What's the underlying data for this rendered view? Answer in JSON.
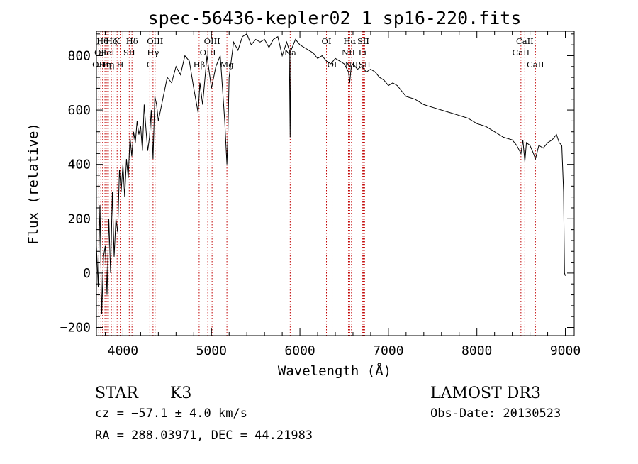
{
  "chart_data": {
    "type": "line",
    "title": "spec-56436-kepler02_1_sp16-220.fits",
    "xlabel": "Wavelength (Å)",
    "ylabel": "Flux (relative)",
    "xlim": [
      3700,
      9100
    ],
    "ylim": [
      -230,
      890
    ],
    "xticks": [
      4000,
      5000,
      6000,
      7000,
      8000,
      9000
    ],
    "yticks": [
      -200,
      0,
      200,
      400,
      600,
      800
    ],
    "grid": false,
    "series": [
      {
        "name": "spectrum",
        "x": [
          3700,
          3720,
          3740,
          3760,
          3780,
          3800,
          3820,
          3840,
          3860,
          3880,
          3900,
          3920,
          3940,
          3960,
          3980,
          4000,
          4020,
          4040,
          4060,
          4080,
          4100,
          4120,
          4140,
          4160,
          4180,
          4200,
          4220,
          4240,
          4260,
          4280,
          4300,
          4320,
          4340,
          4360,
          4380,
          4400,
          4450,
          4500,
          4550,
          4600,
          4650,
          4700,
          4750,
          4800,
          4850,
          4870,
          4900,
          4950,
          5000,
          5050,
          5100,
          5150,
          5175,
          5185,
          5200,
          5250,
          5300,
          5350,
          5400,
          5450,
          5500,
          5550,
          5600,
          5650,
          5700,
          5750,
          5800,
          5850,
          5880,
          5890,
          5896,
          5900,
          5950,
          6000,
          6050,
          6100,
          6150,
          6200,
          6250,
          6300,
          6350,
          6400,
          6450,
          6500,
          6550,
          6563,
          6580,
          6600,
          6650,
          6700,
          6750,
          6800,
          6850,
          6900,
          6950,
          7000,
          7050,
          7100,
          7150,
          7200,
          7300,
          7400,
          7500,
          7600,
          7700,
          7800,
          7900,
          8000,
          8100,
          8200,
          8300,
          8400,
          8450,
          8498,
          8520,
          8542,
          8560,
          8600,
          8640,
          8662,
          8700,
          8750,
          8800,
          8850,
          8900,
          8930,
          8960,
          8980,
          8990,
          9000
        ],
        "y": [
          100,
          -50,
          250,
          -150,
          60,
          100,
          -80,
          200,
          0,
          300,
          60,
          200,
          150,
          380,
          300,
          400,
          280,
          420,
          350,
          500,
          430,
          520,
          480,
          560,
          510,
          540,
          450,
          620,
          530,
          450,
          500,
          600,
          420,
          650,
          620,
          560,
          640,
          720,
          700,
          760,
          730,
          800,
          780,
          680,
          590,
          700,
          620,
          800,
          680,
          760,
          800,
          560,
          400,
          500,
          720,
          850,
          820,
          870,
          880,
          840,
          860,
          850,
          860,
          830,
          860,
          870,
          800,
          850,
          820,
          500,
          830,
          820,
          860,
          840,
          830,
          820,
          810,
          790,
          800,
          780,
          770,
          790,
          780,
          770,
          740,
          700,
          760,
          770,
          750,
          760,
          740,
          750,
          740,
          720,
          710,
          690,
          700,
          690,
          670,
          650,
          640,
          620,
          610,
          600,
          590,
          580,
          570,
          550,
          540,
          520,
          500,
          490,
          470,
          440,
          490,
          410,
          480,
          470,
          440,
          420,
          470,
          460,
          480,
          490,
          510,
          480,
          470,
          300,
          0,
          -10
        ]
      }
    ],
    "lines": [
      {
        "wave": 3727,
        "label": "OII",
        "row": 3
      },
      {
        "wave": 3750,
        "label": "OII",
        "row": 2
      },
      {
        "wave": 3770,
        "label": "Hθ",
        "row": 1
      },
      {
        "wave": 3797,
        "label": "Hη",
        "row": 3
      },
      {
        "wave": 3820,
        "label": "HeI",
        "row": 2
      },
      {
        "wave": 3835,
        "label": "Hη",
        "row": 3
      },
      {
        "wave": 3869,
        "label": "Hζ",
        "row": 1
      },
      {
        "wave": 3889,
        "label": "",
        "row": 0
      },
      {
        "wave": 3934,
        "label": "K",
        "row": 1
      },
      {
        "wave": 3969,
        "label": "H",
        "row": 3
      },
      {
        "wave": 4071,
        "label": "SII",
        "row": 2
      },
      {
        "wave": 4102,
        "label": "Hδ",
        "row": 1
      },
      {
        "wave": 4304,
        "label": "G",
        "row": 3
      },
      {
        "wave": 4340,
        "label": "Hγ",
        "row": 2
      },
      {
        "wave": 4363,
        "label": "OIII",
        "row": 1
      },
      {
        "wave": 4861,
        "label": "Hβ",
        "row": 3
      },
      {
        "wave": 4959,
        "label": "OIII",
        "row": 2
      },
      {
        "wave": 5007,
        "label": "OIII",
        "row": 1
      },
      {
        "wave": 5175,
        "label": "Mg",
        "row": 3
      },
      {
        "wave": 5890,
        "label": "Na",
        "row": 2
      },
      {
        "wave": 6300,
        "label": "OI",
        "row": 1
      },
      {
        "wave": 6364,
        "label": "OI",
        "row": 3
      },
      {
        "wave": 6548,
        "label": "NII",
        "row": 2
      },
      {
        "wave": 6563,
        "label": "Hα",
        "row": 1
      },
      {
        "wave": 6583,
        "label": "NII",
        "row": 3
      },
      {
        "wave": 6707,
        "label": "Li",
        "row": 2
      },
      {
        "wave": 6716,
        "label": "SII",
        "row": 1
      },
      {
        "wave": 6731,
        "label": "SII",
        "row": 3
      },
      {
        "wave": 8498,
        "label": "CaII",
        "row": 2
      },
      {
        "wave": 8542,
        "label": "CaII",
        "row": 1
      },
      {
        "wave": 8662,
        "label": "CaII",
        "row": 3
      }
    ]
  },
  "info": {
    "class_label": "STAR",
    "subclass": "K3",
    "cz": "cz = −57.1 ± 4.0 km/s",
    "radec": "RA = 288.03971, DEC =  44.21983",
    "survey": "LAMOST DR3",
    "obs_date": "Obs-Date: 20130523"
  }
}
